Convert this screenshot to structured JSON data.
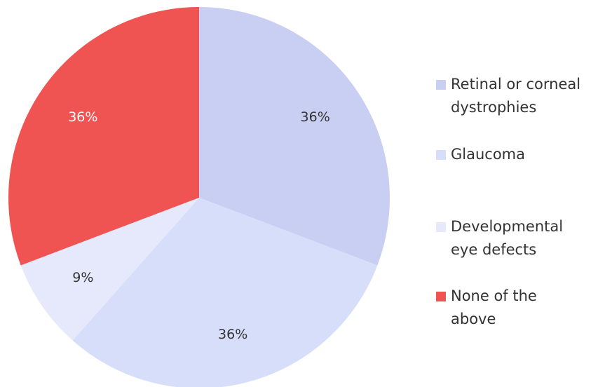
{
  "chart_data": {
    "type": "pie",
    "categories": [
      "Retinal or corneal dystrophies",
      "Glaucoma",
      "Developmental eye defects",
      "None of the above"
    ],
    "values": [
      36,
      36,
      9,
      36
    ],
    "value_labels": [
      "36%",
      "36%",
      "9%",
      "36%"
    ],
    "colors": [
      "#c9cff2",
      "#d6defa",
      "#e6e9fb",
      "#f05452"
    ],
    "label_colors": [
      "#333333",
      "#333333",
      "#333333",
      "#ffffff"
    ]
  }
}
